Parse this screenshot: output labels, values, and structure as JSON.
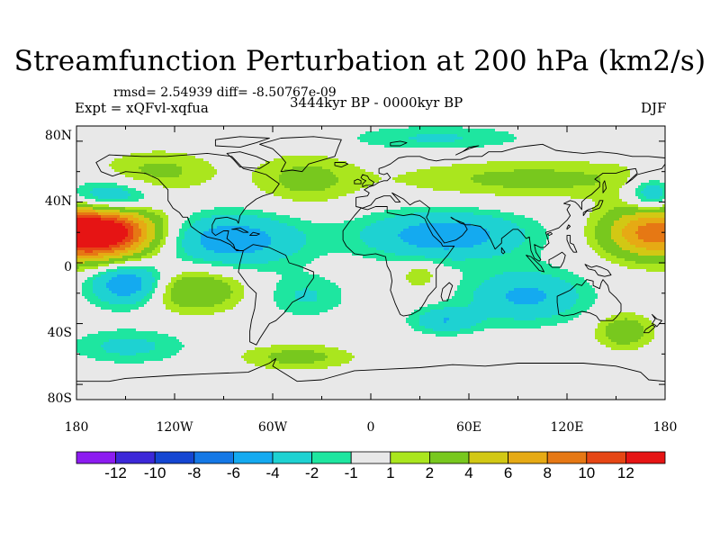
{
  "title": "Streamfunction Perturbation at 200 hPa (km2/s)",
  "stats": "rmsd= 2.54939 diff= -8.50767e-09",
  "expt": "Expt = xQFvl-xqfua",
  "period": "3444kyr BP - 0000kyr BP",
  "season": "DJF",
  "lat_labels": [
    "80N",
    "40N",
    "0",
    "40S",
    "80S"
  ],
  "lon_labels": [
    "180",
    "120W",
    "60W",
    "0",
    "60E",
    "120E",
    "180"
  ],
  "map": {
    "lon_range": [
      -180,
      180
    ],
    "lat_range": [
      -90,
      90
    ],
    "anomalies": [
      {
        "name": "central-pacific-high-nh",
        "lon": -160,
        "lat": 20,
        "amp": 11.5,
        "sx": 22,
        "sy": 12
      },
      {
        "name": "west-pacific-high-nh",
        "lon": 175,
        "lat": 20,
        "amp": 9.5,
        "sx": 22,
        "sy": 12
      },
      {
        "name": "west-pacific-high-nh-wrap",
        "lon": -185,
        "lat": 20,
        "amp": 9.5,
        "sx": 22,
        "sy": 12
      },
      {
        "name": "south-america-high",
        "lon": -110,
        "lat": -18,
        "amp": 4.2,
        "sx": 22,
        "sy": 10
      },
      {
        "name": "south-atlantic-low",
        "lon": -40,
        "lat": -22,
        "amp": -2.2,
        "sx": 18,
        "sy": 10
      },
      {
        "name": "australia-high",
        "lon": 155,
        "lat": -45,
        "amp": 3.5,
        "sx": 12,
        "sy": 8
      },
      {
        "name": "north-pacific-low",
        "lon": -160,
        "lat": 42,
        "amp": -5.5,
        "sx": 18,
        "sy": 8
      },
      {
        "name": "east-pacific-low",
        "lon": -148,
        "lat": -14,
        "amp": -6.5,
        "sx": 16,
        "sy": 10
      },
      {
        "name": "caribbean-low",
        "lon": -85,
        "lat": 15,
        "amp": -5.5,
        "sx": 30,
        "sy": 12
      },
      {
        "name": "arabia-low",
        "lon": 45,
        "lat": 18,
        "amp": -5.5,
        "sx": 35,
        "sy": 11
      },
      {
        "name": "indian-ocean-low",
        "lon": 95,
        "lat": -22,
        "amp": -4.5,
        "sx": 25,
        "sy": 12
      },
      {
        "name": "south-africa-low",
        "lon": 45,
        "lat": -38,
        "amp": -3.8,
        "sx": 14,
        "sy": 6
      },
      {
        "name": "southwest-pacific-low",
        "lon": -148,
        "lat": -55,
        "amp": -2.5,
        "sx": 25,
        "sy": 8
      },
      {
        "name": "north-pacific-low-east",
        "lon": 172,
        "lat": 45,
        "amp": -4.5,
        "sx": 10,
        "sy": 8
      },
      {
        "name": "north-atlantic-high",
        "lon": -40,
        "lat": 55,
        "amp": 2.5,
        "sx": 22,
        "sy": 12
      },
      {
        "name": "north-america-high",
        "lon": -130,
        "lat": 60,
        "amp": 2.4,
        "sx": 25,
        "sy": 10
      },
      {
        "name": "siberia-high",
        "lon": 100,
        "lat": 55,
        "amp": 2.5,
        "sx": 60,
        "sy": 9
      },
      {
        "name": "arctic-low",
        "lon": 40,
        "lat": 82,
        "amp": -2.2,
        "sx": 40,
        "sy": 6
      },
      {
        "name": "southern-ocean-high",
        "lon": -45,
        "lat": -62,
        "amp": 2.6,
        "sx": 25,
        "sy": 6
      },
      {
        "name": "east-africa-high",
        "lon": 30,
        "lat": -8,
        "amp": 2.2,
        "sx": 8,
        "sy": 6
      }
    ]
  },
  "colorbar": {
    "colors": [
      "#8c1cf0",
      "#3c28d8",
      "#1446d2",
      "#1478e6",
      "#14aaf0",
      "#1ed2d2",
      "#1ee6a0",
      "#e8e8e8",
      "#aae61e",
      "#78c81e",
      "#d2c814",
      "#e6aa14",
      "#e67814",
      "#e64614",
      "#e61414"
    ],
    "labels": [
      "-12",
      "-10",
      "-8",
      "-6",
      "-4",
      "-2",
      "-1",
      "1",
      "2",
      "4",
      "6",
      "8",
      "10",
      "12"
    ],
    "levels": [
      -12,
      -10,
      -8,
      -6,
      -4,
      -2,
      -1,
      1,
      2,
      4,
      6,
      8,
      10,
      12
    ]
  }
}
